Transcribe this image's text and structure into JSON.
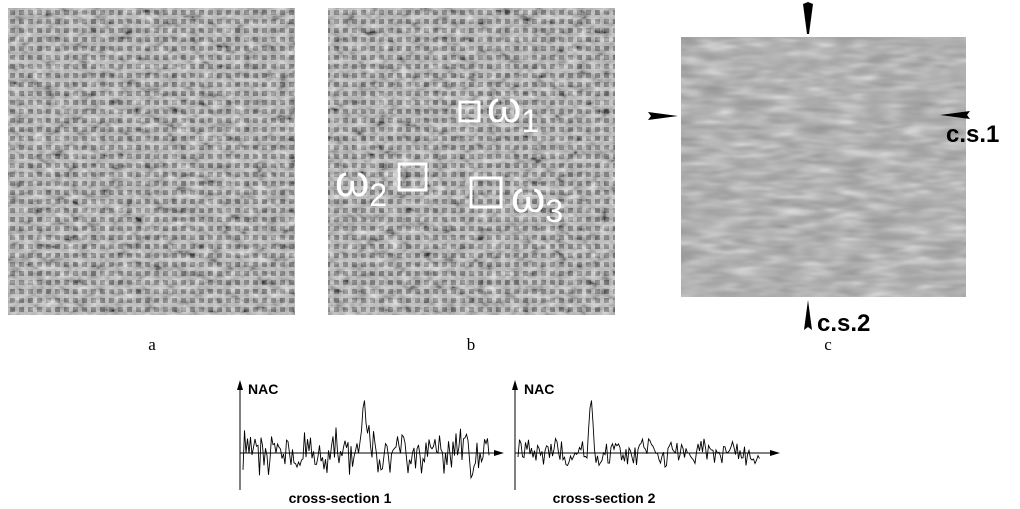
{
  "panels": {
    "a": {
      "label": "a"
    },
    "b": {
      "label": "b",
      "windows": [
        {
          "symbol": "ω",
          "subscript": "1"
        },
        {
          "symbol": "ω",
          "subscript": "2"
        },
        {
          "symbol": "ω",
          "subscript": "3"
        }
      ]
    },
    "c": {
      "label": "c",
      "cross_sections": [
        "c.s.1",
        "c.s.2"
      ]
    }
  },
  "plots": [
    {
      "y_label": "NAC",
      "caption": "cross-section 1"
    },
    {
      "y_label": "NAC",
      "caption": "cross-section 2"
    }
  ]
}
